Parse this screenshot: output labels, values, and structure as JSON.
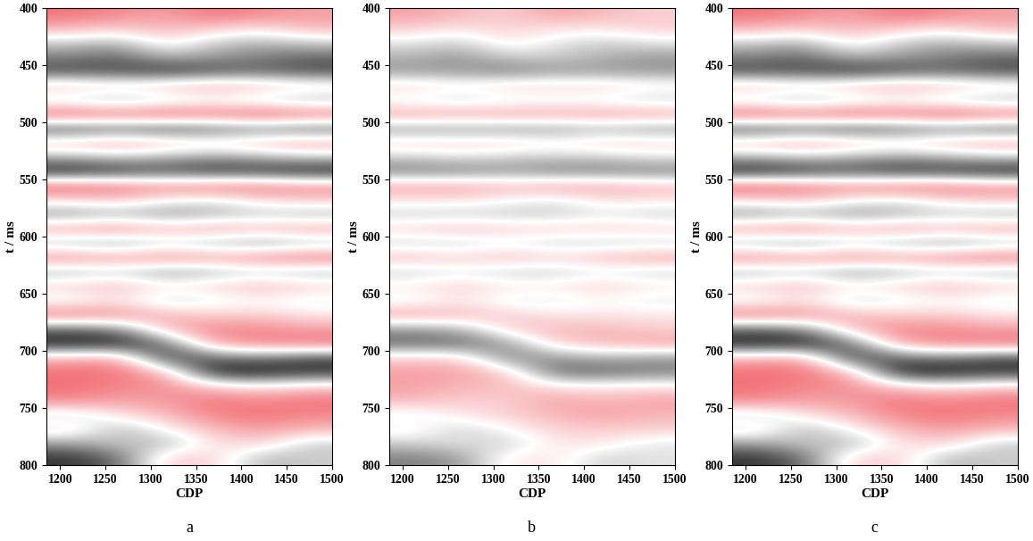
{
  "chart_data": [
    {
      "type": "heatmap",
      "xlabel": "CDP",
      "ylabel": "t / ms",
      "caption": "a",
      "xlim": [
        1185,
        1500
      ],
      "xticks": [
        1200,
        1250,
        1300,
        1350,
        1400,
        1450,
        1500
      ],
      "ylim": [
        800,
        400
      ],
      "yticks": [
        400,
        450,
        500,
        550,
        600,
        650,
        700,
        750,
        800
      ],
      "clim": [
        -1,
        1
      ],
      "x": [
        1211.25,
        1263.75,
        1316.25,
        1368.75,
        1421.25,
        1473.75
      ],
      "y": [
        406.25,
        418.75,
        431.25,
        443.75,
        456.25,
        468.75,
        481.25,
        493.75,
        506.25,
        518.75,
        531.25,
        543.75,
        556.25,
        568.75,
        581.25,
        593.75,
        606.25,
        618.75,
        631.25,
        643.75,
        656.25,
        668.75,
        681.25,
        693.75,
        706.25,
        718.75,
        731.25,
        743.75,
        756.25,
        768.75,
        781.25,
        793.75
      ],
      "values": [
        [
          0.6,
          0.5,
          0.4,
          0.6,
          0.5,
          0.4
        ],
        [
          0.3,
          0.2,
          0.3,
          0.2,
          0.1,
          0.3
        ],
        [
          -0.2,
          -0.3,
          0.1,
          -0.2,
          -0.3,
          -0.2
        ],
        [
          -0.5,
          -0.6,
          -0.3,
          -0.4,
          -0.5,
          -0.6
        ],
        [
          -0.7,
          -0.7,
          -0.8,
          -0.7,
          -0.6,
          -0.7
        ],
        [
          0.3,
          0.2,
          0.3,
          0.4,
          0.3,
          0.2
        ],
        [
          -0.2,
          -0.3,
          -0.2,
          -0.1,
          -0.2,
          -0.3
        ],
        [
          0.7,
          0.6,
          0.7,
          0.6,
          0.7,
          0.6
        ],
        [
          -0.7,
          -0.6,
          -0.7,
          -0.6,
          -0.5,
          -0.6
        ],
        [
          0.3,
          0.4,
          0.3,
          0.2,
          0.3,
          0.4
        ],
        [
          -0.3,
          -0.2,
          -0.3,
          -0.4,
          -0.3,
          -0.2
        ],
        [
          -0.9,
          -0.8,
          -0.7,
          -0.8,
          -0.8,
          -0.9
        ],
        [
          0.7,
          0.6,
          0.5,
          0.6,
          0.6,
          0.5
        ],
        [
          0.1,
          0.2,
          0.0,
          -0.1,
          0.1,
          0.2
        ],
        [
          -0.4,
          -0.3,
          -0.4,
          -0.3,
          -0.2,
          -0.3
        ],
        [
          0.4,
          0.5,
          0.3,
          0.4,
          0.3,
          0.4
        ],
        [
          -0.3,
          -0.4,
          -0.2,
          -0.3,
          -0.4,
          -0.3
        ],
        [
          0.5,
          0.4,
          0.5,
          0.4,
          0.5,
          0.6
        ],
        [
          -0.3,
          -0.2,
          -0.4,
          -0.3,
          -0.2,
          -0.3
        ],
        [
          0.2,
          0.3,
          0.1,
          0.2,
          0.3,
          0.2
        ],
        [
          -0.1,
          0.1,
          -0.2,
          -0.1,
          0.0,
          -0.1
        ],
        [
          0.6,
          0.5,
          0.3,
          0.2,
          0.2,
          0.1
        ],
        [
          -0.6,
          -0.5,
          0.3,
          0.5,
          0.5,
          0.4
        ],
        [
          -0.9,
          -0.9,
          -0.6,
          0.4,
          0.5,
          0.6
        ],
        [
          0.3,
          0.4,
          -0.8,
          -0.6,
          -0.5,
          -0.7
        ],
        [
          0.6,
          0.6,
          0.3,
          -0.9,
          -0.9,
          -0.8
        ],
        [
          0.6,
          0.5,
          0.5,
          0.2,
          0.1,
          0.2
        ],
        [
          0.5,
          0.4,
          0.4,
          0.6,
          0.5,
          0.6
        ],
        [
          -0.2,
          0.1,
          0.3,
          0.5,
          0.6,
          0.5
        ],
        [
          0.2,
          -0.3,
          0.0,
          0.3,
          0.4,
          0.3
        ],
        [
          -0.4,
          -0.2,
          -0.3,
          0.1,
          0.2,
          -0.2
        ],
        [
          -0.8,
          -0.6,
          0.2,
          0.2,
          -0.3,
          -0.2
        ]
      ]
    },
    {
      "type": "heatmap",
      "xlabel": "CDP",
      "ylabel": "t / ms",
      "caption": "b",
      "xlim": [
        1185,
        1500
      ],
      "xticks": [
        1200,
        1250,
        1300,
        1350,
        1400,
        1450,
        1500
      ],
      "ylim": [
        800,
        400
      ],
      "yticks": [
        400,
        450,
        500,
        550,
        600,
        650,
        700,
        750,
        800
      ],
      "clim": [
        -1,
        1
      ],
      "x": [
        1211.25,
        1263.75,
        1316.25,
        1368.75,
        1421.25,
        1473.75
      ],
      "y": [
        406.25,
        418.75,
        431.25,
        443.75,
        456.25,
        468.75,
        481.25,
        493.75,
        506.25,
        518.75,
        531.25,
        543.75,
        556.25,
        568.75,
        581.25,
        593.75,
        606.25,
        618.75,
        631.25,
        643.75,
        656.25,
        668.75,
        681.25,
        693.75,
        706.25,
        718.75,
        731.25,
        743.75,
        756.25,
        768.75,
        781.25,
        793.75
      ],
      "values": [
        [
          0.4,
          0.3,
          0.2,
          0.4,
          0.3,
          0.2
        ],
        [
          0.2,
          0.1,
          0.2,
          0.1,
          0.1,
          0.2
        ],
        [
          -0.1,
          -0.2,
          0.1,
          -0.1,
          -0.2,
          -0.1
        ],
        [
          -0.3,
          -0.4,
          -0.2,
          -0.2,
          -0.3,
          -0.4
        ],
        [
          -0.4,
          -0.4,
          -0.5,
          -0.4,
          -0.4,
          -0.4
        ],
        [
          0.2,
          0.1,
          0.2,
          0.2,
          0.2,
          0.1
        ],
        [
          -0.1,
          -0.2,
          -0.1,
          -0.1,
          -0.1,
          -0.2
        ],
        [
          0.4,
          0.4,
          0.4,
          0.4,
          0.4,
          0.4
        ],
        [
          -0.4,
          -0.4,
          -0.4,
          -0.4,
          -0.3,
          -0.4
        ],
        [
          0.2,
          0.2,
          0.2,
          0.1,
          0.2,
          0.2
        ],
        [
          -0.2,
          -0.1,
          -0.2,
          -0.2,
          -0.2,
          -0.1
        ],
        [
          -0.5,
          -0.5,
          -0.4,
          -0.5,
          -0.5,
          -0.5
        ],
        [
          0.4,
          0.4,
          0.3,
          0.4,
          0.4,
          0.3
        ],
        [
          0.1,
          0.1,
          0.0,
          -0.1,
          0.1,
          0.1
        ],
        [
          -0.2,
          -0.2,
          -0.2,
          -0.2,
          -0.1,
          -0.2
        ],
        [
          0.2,
          0.3,
          0.2,
          0.2,
          0.2,
          0.2
        ],
        [
          -0.2,
          -0.2,
          -0.1,
          -0.2,
          -0.2,
          -0.2
        ],
        [
          0.3,
          0.2,
          0.3,
          0.2,
          0.3,
          0.4
        ],
        [
          -0.2,
          -0.1,
          -0.2,
          -0.2,
          -0.1,
          -0.2
        ],
        [
          0.1,
          0.2,
          0.1,
          0.1,
          0.2,
          0.1
        ],
        [
          -0.1,
          0.1,
          -0.1,
          -0.1,
          0.0,
          -0.1
        ],
        [
          0.4,
          0.3,
          0.2,
          0.1,
          0.1,
          0.1
        ],
        [
          -0.4,
          -0.3,
          0.2,
          0.3,
          0.3,
          0.2
        ],
        [
          -0.6,
          -0.6,
          -0.4,
          0.2,
          0.3,
          0.4
        ],
        [
          0.2,
          0.2,
          -0.5,
          -0.4,
          -0.3,
          -0.4
        ],
        [
          0.4,
          0.4,
          0.2,
          -0.6,
          -0.6,
          -0.5
        ],
        [
          0.4,
          0.3,
          0.3,
          0.1,
          0.1,
          0.1
        ],
        [
          0.3,
          0.2,
          0.2,
          0.4,
          0.3,
          0.4
        ],
        [
          -0.1,
          0.1,
          0.2,
          0.3,
          0.4,
          0.3
        ],
        [
          0.1,
          -0.2,
          0.0,
          0.2,
          0.2,
          0.2
        ],
        [
          -0.2,
          -0.1,
          -0.2,
          0.1,
          0.1,
          -0.1
        ],
        [
          -0.5,
          -0.4,
          0.1,
          0.1,
          -0.2,
          -0.1
        ]
      ]
    },
    {
      "type": "heatmap",
      "xlabel": "CDP",
      "ylabel": "t / ms",
      "caption": "c",
      "xlim": [
        1185,
        1500
      ],
      "xticks": [
        1200,
        1250,
        1300,
        1350,
        1400,
        1450,
        1500
      ],
      "ylim": [
        800,
        400
      ],
      "yticks": [
        400,
        450,
        500,
        550,
        600,
        650,
        700,
        750,
        800
      ],
      "clim": [
        -1,
        1
      ],
      "x": [
        1211.25,
        1263.75,
        1316.25,
        1368.75,
        1421.25,
        1473.75
      ],
      "y": [
        406.25,
        418.75,
        431.25,
        443.75,
        456.25,
        468.75,
        481.25,
        493.75,
        506.25,
        518.75,
        531.25,
        543.75,
        556.25,
        568.75,
        581.25,
        593.75,
        606.25,
        618.75,
        631.25,
        643.75,
        656.25,
        668.75,
        681.25,
        693.75,
        706.25,
        718.75,
        731.25,
        743.75,
        756.25,
        768.75,
        781.25,
        793.75
      ],
      "values": [
        [
          0.6,
          0.5,
          0.4,
          0.6,
          0.5,
          0.4
        ],
        [
          0.3,
          0.2,
          0.3,
          0.2,
          0.1,
          0.3
        ],
        [
          -0.2,
          -0.3,
          0.1,
          -0.2,
          -0.3,
          -0.2
        ],
        [
          -0.5,
          -0.6,
          -0.3,
          -0.4,
          -0.5,
          -0.6
        ],
        [
          -0.7,
          -0.7,
          -0.8,
          -0.7,
          -0.6,
          -0.7
        ],
        [
          0.3,
          0.2,
          0.3,
          0.4,
          0.3,
          0.2
        ],
        [
          -0.2,
          -0.3,
          -0.2,
          -0.1,
          -0.2,
          -0.3
        ],
        [
          0.7,
          0.6,
          0.7,
          0.6,
          0.7,
          0.6
        ],
        [
          -0.7,
          -0.6,
          -0.7,
          -0.6,
          -0.5,
          -0.6
        ],
        [
          0.3,
          0.4,
          0.3,
          0.2,
          0.3,
          0.4
        ],
        [
          -0.3,
          -0.2,
          -0.3,
          -0.4,
          -0.3,
          -0.2
        ],
        [
          -0.9,
          -0.8,
          -0.7,
          -0.8,
          -0.8,
          -0.9
        ],
        [
          0.7,
          0.6,
          0.5,
          0.6,
          0.6,
          0.5
        ],
        [
          0.1,
          0.2,
          0.0,
          -0.1,
          0.1,
          0.2
        ],
        [
          -0.4,
          -0.3,
          -0.4,
          -0.3,
          -0.2,
          -0.3
        ],
        [
          0.4,
          0.5,
          0.3,
          0.4,
          0.3,
          0.4
        ],
        [
          -0.3,
          -0.4,
          -0.2,
          -0.3,
          -0.4,
          -0.3
        ],
        [
          0.5,
          0.4,
          0.5,
          0.4,
          0.5,
          0.6
        ],
        [
          -0.3,
          -0.2,
          -0.4,
          -0.3,
          -0.2,
          -0.3
        ],
        [
          0.2,
          0.3,
          0.1,
          0.2,
          0.3,
          0.2
        ],
        [
          -0.1,
          0.1,
          -0.2,
          -0.1,
          0.0,
          -0.1
        ],
        [
          0.6,
          0.5,
          0.3,
          0.2,
          0.2,
          0.1
        ],
        [
          -0.6,
          -0.5,
          0.3,
          0.5,
          0.5,
          0.4
        ],
        [
          -0.9,
          -0.9,
          -0.6,
          0.4,
          0.5,
          0.6
        ],
        [
          0.3,
          0.4,
          -0.8,
          -0.6,
          -0.5,
          -0.7
        ],
        [
          0.6,
          0.6,
          0.3,
          -0.9,
          -0.9,
          -0.8
        ],
        [
          0.6,
          0.5,
          0.5,
          0.2,
          0.1,
          0.2
        ],
        [
          0.5,
          0.4,
          0.4,
          0.6,
          0.5,
          0.6
        ],
        [
          -0.2,
          0.1,
          0.3,
          0.5,
          0.6,
          0.5
        ],
        [
          0.2,
          -0.3,
          0.0,
          0.3,
          0.4,
          0.3
        ],
        [
          -0.4,
          -0.2,
          -0.3,
          0.1,
          0.2,
          -0.2
        ],
        [
          -0.8,
          -0.6,
          0.2,
          0.2,
          -0.3,
          -0.2
        ]
      ]
    }
  ]
}
